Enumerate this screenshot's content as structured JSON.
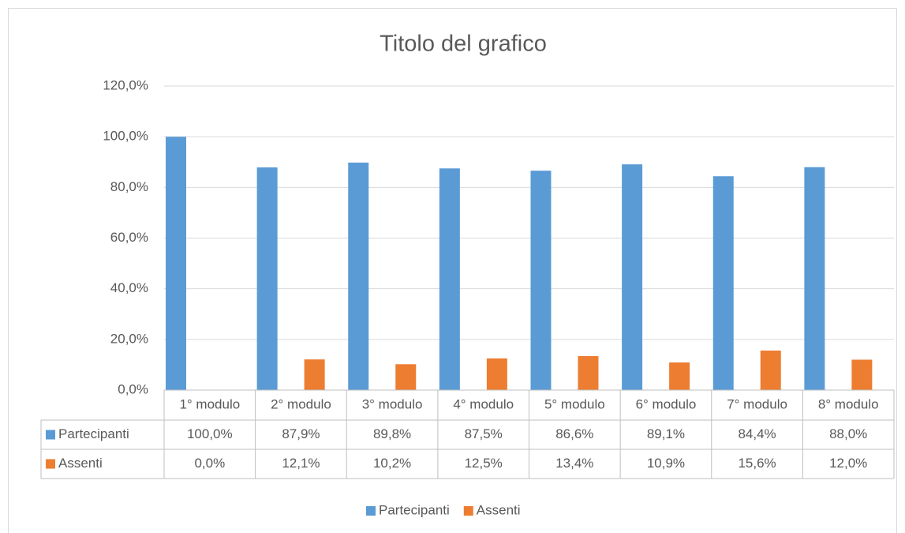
{
  "chart_data": {
    "type": "bar",
    "title": "Titolo del grafico",
    "categories": [
      "1° modulo",
      "2° modulo",
      "3° modulo",
      "4° modulo",
      "5° modulo",
      "6° modulo",
      "7° modulo",
      "8° modulo"
    ],
    "series": [
      {
        "name": "Partecipanti",
        "color": "#5b9bd5",
        "values": [
          100.0,
          87.9,
          89.8,
          87.5,
          86.6,
          89.1,
          84.4,
          88.0
        ],
        "value_labels": [
          "100,0%",
          "87,9%",
          "89,8%",
          "87,5%",
          "86,6%",
          "89,1%",
          "84,4%",
          "88,0%"
        ]
      },
      {
        "name": "Assenti",
        "color": "#ed7d31",
        "values": [
          0.0,
          12.1,
          10.2,
          12.5,
          13.4,
          10.9,
          15.6,
          12.0
        ],
        "value_labels": [
          "0,0%",
          "12,1%",
          "10,2%",
          "12,5%",
          "13,4%",
          "10,9%",
          "15,6%",
          "12,0%"
        ]
      }
    ],
    "ylim": [
      0,
      120
    ],
    "yticks": [
      {
        "value": 0,
        "label": "0,0%"
      },
      {
        "value": 20,
        "label": "20,0%"
      },
      {
        "value": 40,
        "label": "40,0%"
      },
      {
        "value": 60,
        "label": "60,0%"
      },
      {
        "value": 80,
        "label": "80,0%"
      },
      {
        "value": 100,
        "label": "100,0%"
      },
      {
        "value": 120,
        "label": "120,0%"
      }
    ],
    "grid": true,
    "legend": "bottom",
    "data_table": true
  }
}
